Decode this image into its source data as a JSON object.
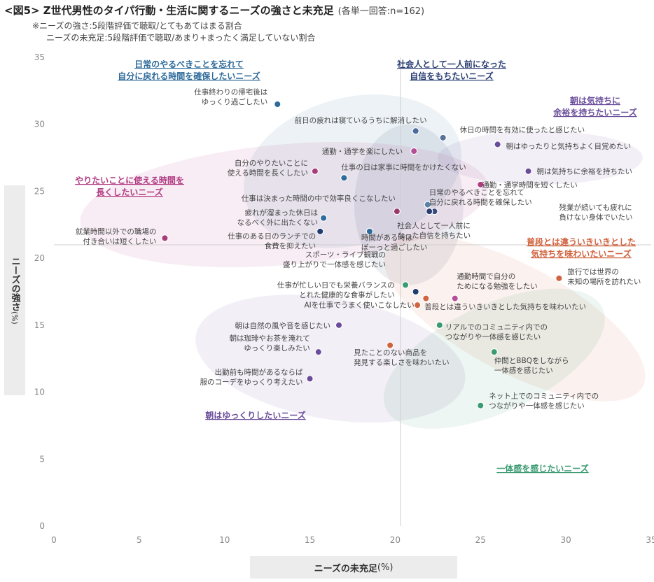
{
  "header": {
    "title": "<図5> Z世代男性のタイパ行動・生活に関するニーズの強さと未充足",
    "subtitle": "(各単一回答:n=162)",
    "note1": "※ニーズの強さ:5段階評価で聴取/とてもあてはまる割合",
    "note2": "ニーズの未充足:5段階評価で聴取/あまり+まったく満足していない割合"
  },
  "chart_data": {
    "type": "scatter",
    "xlabel": "ニーズの未充足",
    "xunit": "(%)",
    "ylabel": "ニーズの強さ",
    "yunit": "(%)",
    "xlim": [
      0,
      35
    ],
    "ylim": [
      0,
      35
    ],
    "xticks": [
      "0",
      "5",
      "10",
      "15",
      "20",
      "25",
      "30",
      "35"
    ],
    "yticks": [
      "0",
      "5",
      "10",
      "15",
      "20",
      "25",
      "30",
      "35"
    ],
    "x_divider": 20.3,
    "y_divider": 21,
    "groups": [
      {
        "name": "日常のやるべきことを忘れて\n自分に戻れる時間を確保したいニーズ",
        "color": "#2e6a9a",
        "ellipse": {
          "cx": 17.5,
          "cy": 26.5,
          "rx": 6.5,
          "ry": 5.5,
          "rot": -15
        }
      },
      {
        "name": "社会人として一人前になった\n自信をもちたいニーズ",
        "color": "#2b3f73",
        "ellipse": {
          "cx": 20.8,
          "cy": 24,
          "rx": 3.2,
          "ry": 6,
          "rot": 0
        }
      },
      {
        "name": "朝は気持ちに\n余裕を持ちたいニーズ",
        "color": "#6a4d9a",
        "ellipse": {
          "cx": 28.5,
          "cy": 27.5,
          "rx": 6,
          "ry": 2,
          "rot": 0
        }
      },
      {
        "name": "やりたいことに使える時間を\n長くしたいニーズ",
        "color": "#b03a82",
        "ellipse": {
          "cx": 13.5,
          "cy": 24,
          "rx": 12,
          "ry": 4.5,
          "rot": -5
        }
      },
      {
        "name": "普段とは違ういきいきとした\n気持ちを味わいたいニーズ",
        "color": "#d1633f",
        "ellipse": {
          "cx": 27,
          "cy": 15.5,
          "rx": 8.5,
          "ry": 4,
          "rot": 28
        }
      },
      {
        "name": "朝はゆっくりしたいニーズ",
        "color": "#6a4d9a",
        "ellipse": {
          "cx": 16.2,
          "cy": 12.5,
          "rx": 8,
          "ry": 4.5,
          "rot": 10
        }
      },
      {
        "name": "一体感を感じたいニーズ",
        "color": "#3a9a72",
        "ellipse": {
          "cx": 25.8,
          "cy": 12.5,
          "rx": 7,
          "ry": 4,
          "rot": -25
        }
      }
    ],
    "points": [
      {
        "label": "仕事終わりの帰宅後は\nゆっくり過ごしたい",
        "x": 13.1,
        "y": 31.5,
        "color": "#2e6a9a"
      },
      {
        "label": "前日の疲れは寝ているうちに解消したい",
        "x": 21.2,
        "y": 29.5,
        "color": "#4a6aa0"
      },
      {
        "label": "休日の時間を有効に使ったと感じたい",
        "x": 22.8,
        "y": 29.0,
        "color": "#5a7098"
      },
      {
        "label": "朝はゆったりと気持ちよく目覚めたい",
        "x": 26.0,
        "y": 28.5,
        "color": "#6a4d9a"
      },
      {
        "label": "通勤・通学を楽にしたい",
        "x": 21.1,
        "y": 28.0,
        "color": "#b54d96"
      },
      {
        "label": "自分のやりたいことに\n使える時間を長くしたい",
        "x": 15.3,
        "y": 26.5,
        "color": "#a83c78"
      },
      {
        "label": "仕事の日は家事に時間をかけたくない",
        "x": 17.0,
        "y": 26.0,
        "color": "#2e6a9a"
      },
      {
        "label": "朝は気持ちに余裕を持ちたい",
        "x": 27.8,
        "y": 26.5,
        "color": "#6a4d9a"
      },
      {
        "label": "通勤・通学時間を短くしたい",
        "x": 25.0,
        "y": 25.5,
        "color": "#b03a82"
      },
      {
        "label": "仕事は決まった時間の中で効率良くこなしたい",
        "x": 20.1,
        "y": 23.5,
        "color": "#9a3a6a"
      },
      {
        "label": "日常のやるべきことを忘れて\n自分に戻れる時間を確保したい",
        "x": 21.9,
        "y": 24.0,
        "color": "#5a82a8"
      },
      {
        "label": "疲れが溜まった休日は\nなるべく外に出たくない",
        "x": 15.8,
        "y": 23.0,
        "color": "#2e6a9a"
      },
      {
        "label": "残業が続いても疲れに\n負けない身体でいたい",
        "x": 22.3,
        "y": 23.5,
        "color": "#3a4a80"
      },
      {
        "label": "社会人として一人前に\nなった自信を持ちたい",
        "x": 22.0,
        "y": 23.5,
        "color": "#2b3f73"
      },
      {
        "label": "仕事のある日のランチでの\n食費を抑えたい",
        "x": 15.6,
        "y": 22.0,
        "color": "#1f3d6e"
      },
      {
        "label": "時間がある時は\nぼーっと過ごしたい",
        "x": 18.5,
        "y": 22.0,
        "color": "#2e6a9a"
      },
      {
        "label": "就業時間以外での職場の\n付き合いは短くしたい",
        "x": 6.5,
        "y": 21.5,
        "color": "#a83c78"
      },
      {
        "label": "旅行では世界の\n未知の場所を訪れたい",
        "x": 29.6,
        "y": 18.5,
        "color": "#d1633f"
      },
      {
        "label": "スポーツ・ライブ観戦の\n盛り上がりで一体感を感じたい",
        "x": 20.6,
        "y": 18.0,
        "color": "#3a9a72"
      },
      {
        "label": "仕事が忙しい日でも栄養バランスの\nとれた健康的な食事がしたい",
        "x": 21.2,
        "y": 17.5,
        "color": "#1f3d6e"
      },
      {
        "label": "通勤時間で自分の\nためになる勉強をしたい",
        "x": 21.8,
        "y": 17.0,
        "color": "#d1633f"
      },
      {
        "label": "AIを仕事でうまく使いこなしたい",
        "x": 23.5,
        "y": 17.0,
        "color": "#b54d96"
      },
      {
        "label": "普段とは違ういきいきとした気持ちを味わいたい",
        "x": 21.3,
        "y": 16.5,
        "color": "#d1633f"
      },
      {
        "label": "朝は自然の風や音を感じたい",
        "x": 16.7,
        "y": 15.0,
        "color": "#6a4d9a"
      },
      {
        "label": "リアルでのコミュニティ内での\nつながりや一体感を感じたい",
        "x": 22.6,
        "y": 15.0,
        "color": "#3a9a72"
      },
      {
        "label": "見たことのない商品を\n発見する楽しさを味わいたい",
        "x": 19.7,
        "y": 13.5,
        "color": "#d1633f"
      },
      {
        "label": "朝は珈琲やお茶を淹れて\nゆっくり楽しみたい",
        "x": 15.5,
        "y": 13.0,
        "color": "#6a4d9a"
      },
      {
        "label": "仲間とBBQをしながら\n一体感を感じたい",
        "x": 25.8,
        "y": 13.0,
        "color": "#3a9a72"
      },
      {
        "label": "出勤前も時間があるならば\n服のコーデをゆっくり考えたい",
        "x": 15.0,
        "y": 11.0,
        "color": "#6a4d9a"
      },
      {
        "label": "ネット上でのコミュニティ内での\nつながりや一体感を感じたい",
        "x": 25.0,
        "y": 9.0,
        "color": "#3a9a72"
      }
    ]
  }
}
